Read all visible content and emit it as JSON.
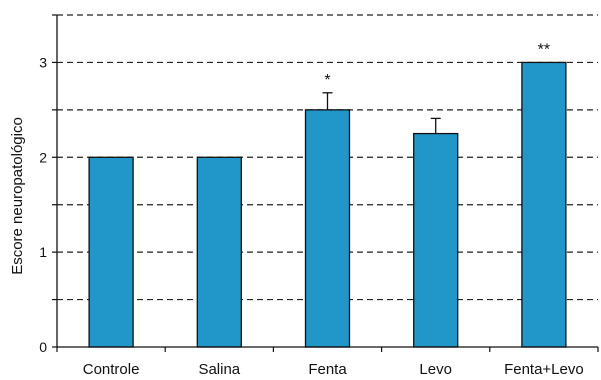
{
  "chart_data": {
    "type": "bar",
    "title": "",
    "xlabel": "",
    "ylabel": "Escore neuropatológico",
    "categories": [
      "Controle",
      "Salina",
      "Fenta",
      "Levo",
      "Fenta+Levo"
    ],
    "values": [
      2.0,
      2.0,
      2.5,
      2.25,
      3.0
    ],
    "errors": [
      0,
      0,
      0.18,
      0.16,
      0
    ],
    "annotations": [
      "",
      "",
      "*",
      "",
      "**"
    ],
    "ylim": [
      0,
      3.5
    ],
    "yticks": [
      "0",
      "1",
      "2",
      "3"
    ],
    "grid": true,
    "grid_style": "dashed",
    "grid_step": 0.5,
    "bar_color": "#2196c9",
    "bar_edge_color": "#111111"
  }
}
